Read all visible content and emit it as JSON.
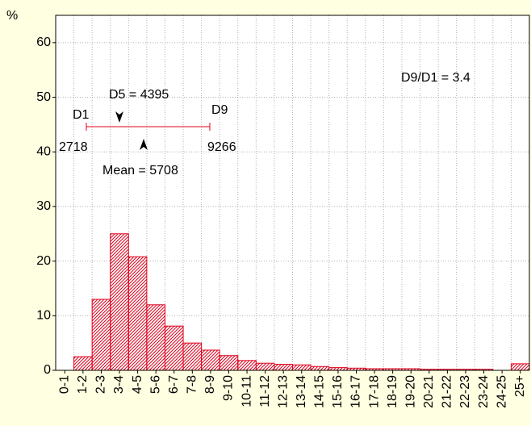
{
  "chart_data": {
    "type": "bar",
    "y_label": "%",
    "categories": [
      "0-1",
      "1-2",
      "2-3",
      "3-4",
      "4-5",
      "5-6",
      "6-7",
      "7-8",
      "8-9",
      "9-10",
      "10-11",
      "11-12",
      "12-13",
      "13-14",
      "14-15",
      "15-16",
      "16-17",
      "17-18",
      "18-19",
      "19-20",
      "20-21",
      "21-22",
      "22-23",
      "23-24",
      "24-25",
      "25+"
    ],
    "values": [
      0,
      2.5,
      13,
      25,
      20.8,
      12,
      8.1,
      5,
      3.7,
      2.7,
      1.8,
      1.3,
      1.1,
      1.0,
      0.7,
      0.5,
      0.4,
      0.3,
      0.3,
      0.3,
      0.2,
      0.2,
      0.2,
      0.2,
      0,
      1.2
    ],
    "color": "#e0001b",
    "ylim": [
      0,
      65
    ],
    "yticks": [
      0,
      10,
      20,
      30,
      40,
      50,
      60
    ],
    "grid": true,
    "annotations": [
      "D1",
      "2718",
      "D9",
      "9266",
      "D5 = 4395",
      "Mean = 5708",
      "D9/D1 = 3.4"
    ]
  }
}
